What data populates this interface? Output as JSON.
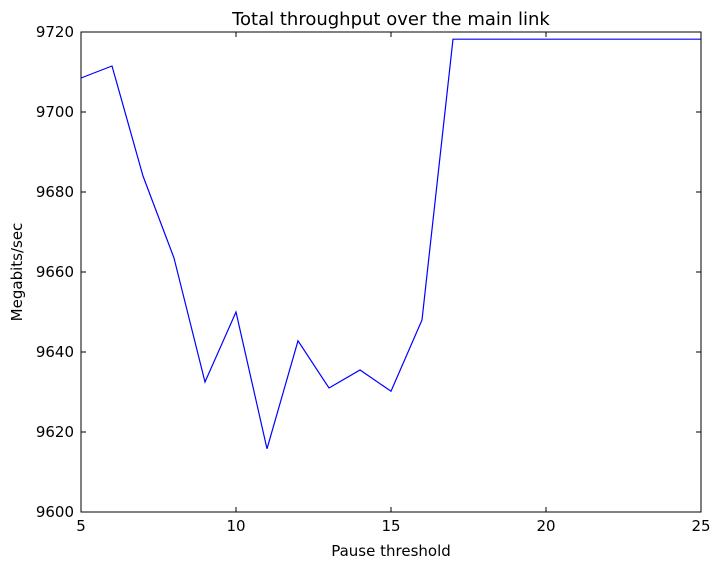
{
  "chart_data": {
    "type": "line",
    "title": "Total throughput over the main link",
    "xlabel": "Pause threshold",
    "ylabel": "Megabits/sec",
    "xlim": [
      5,
      25
    ],
    "ylim": [
      9600,
      9720
    ],
    "xticks": [
      5,
      10,
      15,
      20,
      25
    ],
    "yticks": [
      9600,
      9620,
      9640,
      9660,
      9680,
      9700,
      9720
    ],
    "grid": false,
    "series": [
      {
        "color": "#0000ff",
        "x": [
          5,
          6,
          7,
          8,
          9,
          10,
          11,
          12,
          13,
          14,
          15,
          16,
          17,
          18,
          19,
          20,
          21,
          22,
          23,
          24,
          25
        ],
        "y": [
          9708.5,
          9711.5,
          9684,
          9663.5,
          9632.5,
          9650,
          9615.8,
          9642.8,
          9631,
          9635.5,
          9630.2,
          9648,
          9718.2,
          9718.2,
          9718.2,
          9718.2,
          9718.2,
          9718.2,
          9718.2,
          9718.2,
          9718.2
        ]
      }
    ]
  }
}
